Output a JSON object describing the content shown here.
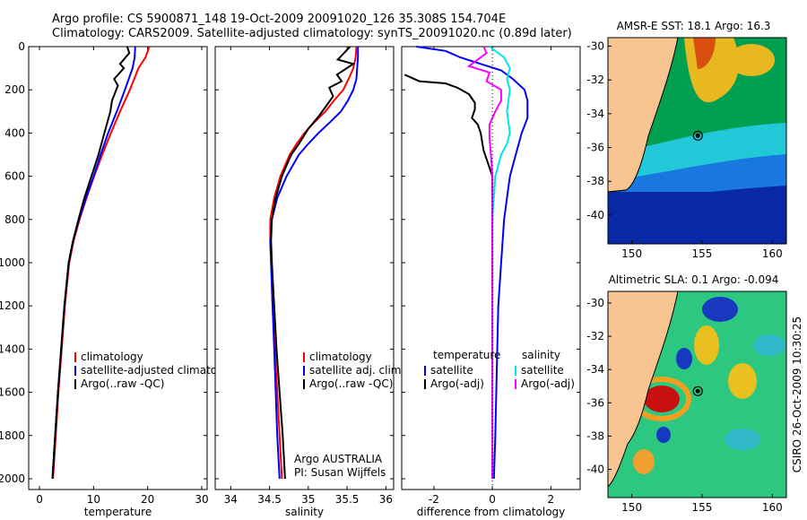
{
  "header": {
    "line1": "Argo profile: CS 5900871_148 19-Oct-2009 20091020_126 35.308S 154.704E",
    "line2": "Climatology: CARS2009. Satellite-adjusted climatology: synTS_20091020.nc (0.89d later)"
  },
  "side_label": "CSIRO 26-Oct-2009 10:30:25",
  "colors": {
    "climatology": "#ff0000",
    "satellite": "#0000ff",
    "argo": "#000000",
    "salinity_sat": "#00e5e5",
    "salinity_argo": "#ff00ff",
    "land": "#f8c490"
  },
  "chart_data": [
    {
      "type": "line",
      "id": "temperature",
      "xlabel": "temperature",
      "ylabel": "",
      "xlim": [
        -2,
        31
      ],
      "ylim": [
        2050,
        0
      ],
      "xticks": [
        "0",
        "10",
        "20",
        "30"
      ],
      "yticks": [
        "0",
        "200",
        "400",
        "600",
        "800",
        "1000",
        "1200",
        "1400",
        "1600",
        "1800",
        "2000"
      ],
      "legend": [
        "climatology",
        "satellite-adjusted climatology",
        "Argo(..raw -QC)"
      ],
      "series": [
        {
          "name": "climatology",
          "color": "#ff0000",
          "points": [
            [
              20.3,
              0
            ],
            [
              19.6,
              50
            ],
            [
              18.3,
              100
            ],
            [
              16.7,
              200
            ],
            [
              14.9,
              300
            ],
            [
              13.2,
              400
            ],
            [
              11.6,
              500
            ],
            [
              10.1,
              600
            ],
            [
              8.7,
              700
            ],
            [
              7.4,
              800
            ],
            [
              6.3,
              900
            ],
            [
              5.5,
              1000
            ],
            [
              4.7,
              1200
            ],
            [
              4.1,
              1400
            ],
            [
              3.5,
              1600
            ],
            [
              3,
              1800
            ],
            [
              2.5,
              2000
            ]
          ]
        },
        {
          "name": "satellite-adjusted climatology",
          "color": "#0000ff",
          "points": [
            [
              17.7,
              0
            ],
            [
              17.6,
              50
            ],
            [
              17.2,
              100
            ],
            [
              15.8,
              200
            ],
            [
              14.3,
              300
            ],
            [
              12.7,
              400
            ],
            [
              11.3,
              500
            ],
            [
              10.0,
              600
            ],
            [
              8.6,
              700
            ],
            [
              7.3,
              800
            ],
            [
              6.2,
              900
            ],
            [
              5.4,
              1000
            ],
            [
              4.6,
              1200
            ],
            [
              4.0,
              1400
            ],
            [
              3.4,
              1600
            ],
            [
              2.9,
              1800
            ],
            [
              2.4,
              2000
            ]
          ]
        },
        {
          "name": "Argo(..raw -QC)",
          "color": "#000000",
          "points": [
            [
              16.2,
              0
            ],
            [
              16.6,
              30
            ],
            [
              14.9,
              80
            ],
            [
              15.6,
              100
            ],
            [
              13.8,
              150
            ],
            [
              14.5,
              180
            ],
            [
              13.4,
              250
            ],
            [
              13.1,
              300
            ],
            [
              12.0,
              400
            ],
            [
              10.9,
              500
            ],
            [
              9.6,
              600
            ],
            [
              8.3,
              700
            ],
            [
              7.2,
              800
            ],
            [
              6.2,
              900
            ],
            [
              5.4,
              1000
            ],
            [
              4.6,
              1200
            ],
            [
              4.0,
              1400
            ],
            [
              3.4,
              1600
            ],
            [
              2.9,
              1800
            ],
            [
              2.4,
              2000
            ]
          ]
        }
      ]
    },
    {
      "type": "line",
      "id": "salinity",
      "xlabel": "salinity",
      "xlim": [
        33.8,
        36.1
      ],
      "ylim": [
        2050,
        0
      ],
      "xticks": [
        "34",
        "34.5",
        "35",
        "35.5",
        "36"
      ],
      "legend": [
        "climatology",
        "satellite adj. clim.",
        "Argo(..raw -QC)"
      ],
      "annotation": [
        "Argo AUSTRALIA",
        "PI: Susan Wijffels"
      ],
      "series": [
        {
          "name": "climatology",
          "color": "#ff0000",
          "points": [
            [
              35.62,
              0
            ],
            [
              35.61,
              50
            ],
            [
              35.58,
              100
            ],
            [
              35.52,
              150
            ],
            [
              35.45,
              200
            ],
            [
              35.33,
              250
            ],
            [
              35.22,
              300
            ],
            [
              35.08,
              350
            ],
            [
              34.95,
              400
            ],
            [
              34.85,
              450
            ],
            [
              34.76,
              500
            ],
            [
              34.64,
              600
            ],
            [
              34.56,
              700
            ],
            [
              34.51,
              800
            ],
            [
              34.51,
              900
            ],
            [
              34.52,
              1000
            ],
            [
              34.54,
              1200
            ],
            [
              34.57,
              1400
            ],
            [
              34.6,
              1600
            ],
            [
              34.63,
              1800
            ],
            [
              34.66,
              2000
            ]
          ]
        },
        {
          "name": "satellite adj. clim.",
          "color": "#0000ff",
          "points": [
            [
              35.64,
              0
            ],
            [
              35.64,
              50
            ],
            [
              35.63,
              100
            ],
            [
              35.62,
              150
            ],
            [
              35.58,
              200
            ],
            [
              35.51,
              250
            ],
            [
              35.42,
              300
            ],
            [
              35.28,
              350
            ],
            [
              35.13,
              400
            ],
            [
              35.0,
              450
            ],
            [
              34.88,
              500
            ],
            [
              34.72,
              600
            ],
            [
              34.6,
              700
            ],
            [
              34.53,
              800
            ],
            [
              34.51,
              900
            ],
            [
              34.52,
              1000
            ],
            [
              34.54,
              1200
            ],
            [
              34.56,
              1400
            ],
            [
              34.58,
              1600
            ],
            [
              34.6,
              1800
            ],
            [
              34.63,
              2000
            ]
          ]
        },
        {
          "name": "Argo(..raw -QC)",
          "color": "#000000",
          "points": [
            [
              35.54,
              0
            ],
            [
              35.38,
              60
            ],
            [
              35.58,
              80
            ],
            [
              35.37,
              130
            ],
            [
              35.43,
              160
            ],
            [
              35.27,
              190
            ],
            [
              35.32,
              230
            ],
            [
              35.14,
              320
            ],
            [
              35.0,
              380
            ],
            [
              34.88,
              450
            ],
            [
              34.78,
              500
            ],
            [
              34.66,
              600
            ],
            [
              34.58,
              700
            ],
            [
              34.53,
              800
            ],
            [
              34.52,
              900
            ],
            [
              34.53,
              1000
            ],
            [
              34.56,
              1200
            ],
            [
              34.59,
              1400
            ],
            [
              34.63,
              1600
            ],
            [
              34.67,
              1800
            ],
            [
              34.7,
              2000
            ]
          ]
        }
      ]
    },
    {
      "type": "line",
      "id": "difference",
      "xlabel": "difference from climatology",
      "xlim": [
        -3.1,
        3.0
      ],
      "ylim": [
        2050,
        0
      ],
      "xticks": [
        "-2",
        "0",
        "2"
      ],
      "legend_temperature": {
        "title": "temperature",
        "items": [
          "satellite",
          "Argo(-adj)"
        ]
      },
      "legend_salinity": {
        "title": "salinity",
        "items": [
          "satellite",
          "Argo(-adj)"
        ]
      },
      "series": [
        {
          "name": "temperature satellite",
          "color": "#0000ff",
          "points": [
            [
              -2.6,
              0
            ],
            [
              -1.6,
              20
            ],
            [
              -1.1,
              50
            ],
            [
              -0.4,
              80
            ],
            [
              0.3,
              110
            ],
            [
              0.7,
              150
            ],
            [
              1.1,
              200
            ],
            [
              1.2,
              250
            ],
            [
              1.2,
              280
            ],
            [
              1.2,
              330
            ],
            [
              1.0,
              400
            ],
            [
              0.8,
              500
            ],
            [
              0.6,
              600
            ],
            [
              0.5,
              700
            ],
            [
              0.4,
              800
            ],
            [
              0.3,
              1000
            ],
            [
              0.2,
              1200
            ],
            [
              0.15,
              1500
            ],
            [
              0.1,
              1800
            ],
            [
              0.05,
              2000
            ]
          ]
        },
        {
          "name": "temperature Argo(-adj)",
          "color": "#000000",
          "points": [
            [
              -3.0,
              130
            ],
            [
              -2.5,
              160
            ],
            [
              -1.6,
              170
            ],
            [
              -1.2,
              190
            ],
            [
              -0.8,
              220
            ],
            [
              -0.6,
              260
            ],
            [
              -0.6,
              290
            ],
            [
              -0.7,
              330
            ],
            [
              -0.5,
              360
            ],
            [
              -0.4,
              400
            ],
            [
              -0.3,
              480
            ],
            [
              -0.2,
              520
            ],
            [
              -0.1,
              560
            ],
            [
              0.0,
              600
            ],
            [
              0.0,
              2000
            ]
          ]
        },
        {
          "name": "salinity satellite",
          "color": "#00e5e5",
          "points": [
            [
              -0.1,
              0
            ],
            [
              0.4,
              50
            ],
            [
              0.6,
              100
            ],
            [
              0.5,
              150
            ],
            [
              0.6,
              200
            ],
            [
              0.5,
              300
            ],
            [
              0.6,
              400
            ],
            [
              0.5,
              450
            ],
            [
              0.3,
              500
            ],
            [
              0.1,
              600
            ],
            [
              0.0,
              800
            ],
            [
              0.0,
              2000
            ]
          ]
        },
        {
          "name": "salinity Argo(-adj)",
          "color": "#ff00ff",
          "points": [
            [
              -0.3,
              0
            ],
            [
              -0.2,
              30
            ],
            [
              -0.8,
              90
            ],
            [
              -0.1,
              120
            ],
            [
              -0.2,
              160
            ],
            [
              0.3,
              200
            ],
            [
              0.3,
              250
            ],
            [
              0.1,
              300
            ],
            [
              -0.1,
              360
            ],
            [
              -0.1,
              420
            ],
            [
              -0.05,
              500
            ],
            [
              0.0,
              600
            ],
            [
              0.0,
              2000
            ]
          ]
        }
      ]
    },
    {
      "type": "heatmap",
      "id": "sst_map",
      "title": "AMSR-E SST: 18.1 Argo: 16.3",
      "xlim": [
        148.3,
        161
      ],
      "ylim": [
        -41.7,
        -29.5
      ],
      "xticks": [
        "150",
        "155",
        "160"
      ],
      "yticks": [
        "-30",
        "-32",
        "-34",
        "-36",
        "-38",
        "-40"
      ],
      "argo_marker": {
        "lon": 154.7,
        "lat": -35.3
      }
    },
    {
      "type": "heatmap",
      "id": "sla_map",
      "title": "Altimetric SLA: 0.1 Argo: -0.094",
      "xlim": [
        148.3,
        161
      ],
      "ylim": [
        -41.7,
        -29.3
      ],
      "xticks": [
        "150",
        "155",
        "160"
      ],
      "yticks": [
        "-30",
        "-32",
        "-34",
        "-36",
        "-38",
        "-40"
      ],
      "argo_marker": {
        "lon": 154.7,
        "lat": -35.3
      }
    }
  ]
}
